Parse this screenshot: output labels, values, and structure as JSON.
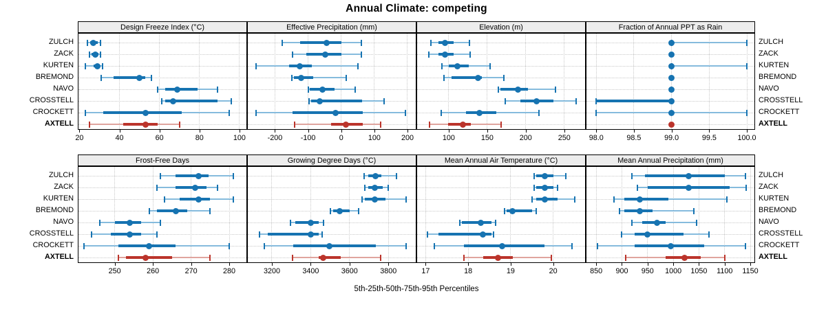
{
  "title": "Annual Climate: competing",
  "footer": "5th-25th-50th-75th-95th Percentiles",
  "percentile_levels": [
    "5th",
    "25th",
    "50th",
    "75th",
    "95th"
  ],
  "locations": [
    "ZULCH",
    "ZACK",
    "KURTEN",
    "BREMOND",
    "NAVO",
    "CROSSTELL",
    "CROCKETT",
    "AXTELL"
  ],
  "highlight_location": "AXTELL",
  "colors": {
    "line": "#1673b1",
    "line_light": "#85bbdd",
    "highlight": "#bb342b",
    "highlight_light": "#e0a49e",
    "strip_bg": "#ededed",
    "grid": "#c8c8c8",
    "border": "#000000"
  },
  "chart_data": [
    {
      "type": "scatter",
      "style": "percentile-interval-dotplot",
      "title": "Design Freeze Index (°C)",
      "xlim": [
        19.5,
        103.5
      ],
      "ticks": [
        20,
        40,
        60,
        80,
        100
      ],
      "tick_labels": [
        "20",
        "40",
        "60",
        "80",
        "100"
      ],
      "series": [
        {
          "name": "ZULCH",
          "values": [
            24,
            25.5,
            27,
            29,
            30.5
          ]
        },
        {
          "name": "ZACK",
          "values": [
            25,
            26,
            28,
            29.5,
            30.5
          ]
        },
        {
          "name": "KURTEN",
          "values": [
            23,
            27,
            29,
            30,
            31.5
          ]
        },
        {
          "name": "BREMOND",
          "values": [
            31,
            37,
            50,
            53,
            56
          ]
        },
        {
          "name": "NAVO",
          "values": [
            59,
            63,
            69,
            79,
            89
          ]
        },
        {
          "name": "CROSSTELL",
          "values": [
            61,
            63,
            67,
            89,
            96
          ]
        },
        {
          "name": "CROCKETT",
          "values": [
            23,
            32,
            53,
            71,
            95
          ]
        },
        {
          "name": "AXTELL",
          "values": [
            25,
            42,
            53,
            59,
            70
          ]
        }
      ]
    },
    {
      "type": "scatter",
      "style": "percentile-interval-dotplot",
      "title": "Effective Precipitation (mm)",
      "xlim": [
        -282,
        225
      ],
      "ticks": [
        -200,
        -100,
        0,
        100,
        200
      ],
      "tick_labels": [
        "-200",
        "-100",
        "0",
        "100",
        "200"
      ],
      "series": [
        {
          "name": "ZULCH",
          "values": [
            -178,
            -125,
            -45,
            0,
            60
          ]
        },
        {
          "name": "ZACK",
          "values": [
            -147,
            -105,
            -48,
            0,
            60
          ]
        },
        {
          "name": "KURTEN",
          "values": [
            -257,
            -157,
            -126,
            -88,
            50
          ]
        },
        {
          "name": "BREMOND",
          "values": [
            -150,
            -143,
            -120,
            -85,
            15
          ]
        },
        {
          "name": "NAVO",
          "values": [
            -100,
            -95,
            -56,
            -20,
            43
          ]
        },
        {
          "name": "CROSSTELL",
          "values": [
            -97,
            -91,
            -64,
            63,
            130
          ]
        },
        {
          "name": "CROCKETT",
          "values": [
            -257,
            -147,
            -17,
            65,
            194
          ]
        },
        {
          "name": "AXTELL",
          "values": [
            -140,
            -30,
            15,
            65,
            120
          ]
        }
      ]
    },
    {
      "type": "scatter",
      "style": "percentile-interval-dotplot",
      "title": "Elevation (m)",
      "xlim": [
        59,
        277
      ],
      "ticks": [
        100,
        150,
        200,
        250
      ],
      "tick_labels": [
        "100",
        "150",
        "200",
        "250"
      ],
      "series": [
        {
          "name": "ZULCH",
          "values": [
            77,
            87,
            95,
            106,
            127
          ]
        },
        {
          "name": "ZACK",
          "values": [
            74,
            87,
            95,
            106,
            128
          ]
        },
        {
          "name": "KURTEN",
          "values": [
            91,
            100,
            111,
            126,
            154
          ]
        },
        {
          "name": "BREMOND",
          "values": [
            94,
            104,
            138,
            143,
            172
          ]
        },
        {
          "name": "NAVO",
          "values": [
            164,
            167,
            190,
            203,
            239
          ]
        },
        {
          "name": "CROSSTELL",
          "values": [
            173,
            193,
            214,
            236,
            265
          ]
        },
        {
          "name": "CROCKETT",
          "values": [
            90,
            122,
            140,
            162,
            217
          ]
        },
        {
          "name": "AXTELL",
          "values": [
            75,
            99,
            118,
            129,
            168
          ]
        }
      ]
    },
    {
      "type": "scatter",
      "style": "percentile-interval-dotplot",
      "title": "Fraction of Annual PPT as Rain",
      "xlim": [
        97.87,
        100.1
      ],
      "ticks": [
        98.0,
        98.5,
        99.0,
        99.5,
        100.0
      ],
      "tick_labels": [
        "98.0",
        "98.5",
        "99.0",
        "99.5",
        "100.0"
      ],
      "series": [
        {
          "name": "ZULCH",
          "values": [
            99,
            99,
            99,
            99,
            100
          ]
        },
        {
          "name": "ZACK",
          "values": [
            99,
            99,
            99,
            99,
            99
          ]
        },
        {
          "name": "KURTEN",
          "values": [
            99,
            99,
            99,
            99,
            100
          ]
        },
        {
          "name": "BREMOND",
          "values": [
            99,
            99,
            99,
            99,
            99
          ]
        },
        {
          "name": "NAVO",
          "values": [
            99,
            99,
            99,
            99,
            99
          ]
        },
        {
          "name": "CROSSTELL",
          "values": [
            98,
            98,
            99,
            99,
            99
          ]
        },
        {
          "name": "CROCKETT",
          "values": [
            98,
            99,
            99,
            99,
            100
          ]
        },
        {
          "name": "AXTELL",
          "values": [
            99,
            99,
            99,
            99,
            99
          ]
        }
      ]
    },
    {
      "type": "scatter",
      "style": "percentile-interval-dotplot",
      "title": "Frost-Free Days",
      "xlim": [
        240.5,
        284.5
      ],
      "ticks": [
        250,
        260,
        270,
        280
      ],
      "tick_labels": [
        "250",
        "260",
        "270",
        "280"
      ],
      "series": [
        {
          "name": "ZULCH",
          "values": [
            262,
            266,
            272,
            274.5,
            281
          ]
        },
        {
          "name": "ZACK",
          "values": [
            261,
            266,
            271,
            274,
            277
          ]
        },
        {
          "name": "KURTEN",
          "values": [
            263,
            267,
            272,
            275,
            281
          ]
        },
        {
          "name": "BREMOND",
          "values": [
            259,
            261,
            266,
            269,
            275
          ]
        },
        {
          "name": "NAVO",
          "values": [
            246,
            250,
            254,
            257,
            262
          ]
        },
        {
          "name": "CROSSTELL",
          "values": [
            244,
            249,
            254,
            257,
            261
          ]
        },
        {
          "name": "CROCKETT",
          "values": [
            242,
            251,
            259,
            266,
            280
          ]
        },
        {
          "name": "AXTELL",
          "values": [
            251,
            253,
            258,
            265,
            275
          ]
        }
      ]
    },
    {
      "type": "scatter",
      "style": "percentile-interval-dotplot",
      "title": "Growing Degree Days (°C)",
      "xlim": [
        3076,
        3941
      ],
      "ticks": [
        3200,
        3400,
        3600,
        3800
      ],
      "tick_labels": [
        "3200",
        "3400",
        "3600",
        "3800"
      ],
      "series": [
        {
          "name": "ZULCH",
          "values": [
            3675,
            3695,
            3735,
            3765,
            3840
          ]
        },
        {
          "name": "ZACK",
          "values": [
            3680,
            3695,
            3730,
            3770,
            3800
          ]
        },
        {
          "name": "KURTEN",
          "values": [
            3665,
            3680,
            3730,
            3785,
            3890
          ]
        },
        {
          "name": "BREMOND",
          "values": [
            3500,
            3515,
            3550,
            3600,
            3645
          ]
        },
        {
          "name": "NAVO",
          "values": [
            3295,
            3320,
            3400,
            3440,
            3465
          ]
        },
        {
          "name": "CROSSTELL",
          "values": [
            3135,
            3180,
            3400,
            3440,
            3460
          ]
        },
        {
          "name": "CROCKETT",
          "values": [
            3160,
            3310,
            3495,
            3735,
            3890
          ]
        },
        {
          "name": "AXTELL",
          "values": [
            3305,
            3440,
            3465,
            3555,
            3760
          ]
        }
      ]
    },
    {
      "type": "scatter",
      "style": "percentile-interval-dotplot",
      "title": "Mean Annual Air Temperature (°C)",
      "xlim": [
        16.8,
        20.75
      ],
      "ticks": [
        17,
        18,
        19,
        20
      ],
      "tick_labels": [
        "17",
        "18",
        "19",
        "20"
      ],
      "series": [
        {
          "name": "ZULCH",
          "values": [
            19.55,
            19.6,
            19.8,
            20.0,
            20.3
          ]
        },
        {
          "name": "ZACK",
          "values": [
            19.55,
            19.6,
            19.8,
            20.0,
            20.1
          ]
        },
        {
          "name": "KURTEN",
          "values": [
            19.5,
            19.6,
            19.8,
            20.1,
            20.5
          ]
        },
        {
          "name": "BREMOND",
          "values": [
            18.85,
            18.9,
            19.05,
            19.5,
            19.6
          ]
        },
        {
          "name": "NAVO",
          "values": [
            17.8,
            17.85,
            18.3,
            18.55,
            18.65
          ]
        },
        {
          "name": "CROSSTELL",
          "values": [
            17.05,
            17.3,
            18.35,
            18.55,
            18.6
          ]
        },
        {
          "name": "CROCKETT",
          "values": [
            17.2,
            17.9,
            18.8,
            19.8,
            20.45
          ]
        },
        {
          "name": "AXTELL",
          "values": [
            17.9,
            18.35,
            18.7,
            19.05,
            19.95
          ]
        }
      ]
    },
    {
      "type": "scatter",
      "style": "percentile-interval-dotplot",
      "title": "Mean Annual Precipitation (mm)",
      "xlim": [
        831,
        1158
      ],
      "ticks": [
        850,
        900,
        950,
        1000,
        1050,
        1100,
        1150
      ],
      "tick_labels": [
        "850",
        "900",
        "950",
        "1000",
        "1050",
        "1100",
        "1150"
      ],
      "series": [
        {
          "name": "ZULCH",
          "values": [
            920,
            945,
            1030,
            1100,
            1140
          ]
        },
        {
          "name": "ZACK",
          "values": [
            930,
            950,
            1030,
            1110,
            1142
          ]
        },
        {
          "name": "KURTEN",
          "values": [
            885,
            905,
            935,
            990,
            1105
          ]
        },
        {
          "name": "BREMOND",
          "values": [
            895,
            905,
            935,
            960,
            1040
          ]
        },
        {
          "name": "NAVO",
          "values": [
            920,
            940,
            968,
            985,
            1045
          ]
        },
        {
          "name": "CROSSTELL",
          "values": [
            900,
            925,
            950,
            1020,
            1070
          ]
        },
        {
          "name": "CROCKETT",
          "values": [
            853,
            925,
            995,
            1060,
            1140
          ]
        },
        {
          "name": "AXTELL",
          "values": [
            908,
            985,
            1022,
            1053,
            1100
          ]
        }
      ]
    }
  ]
}
